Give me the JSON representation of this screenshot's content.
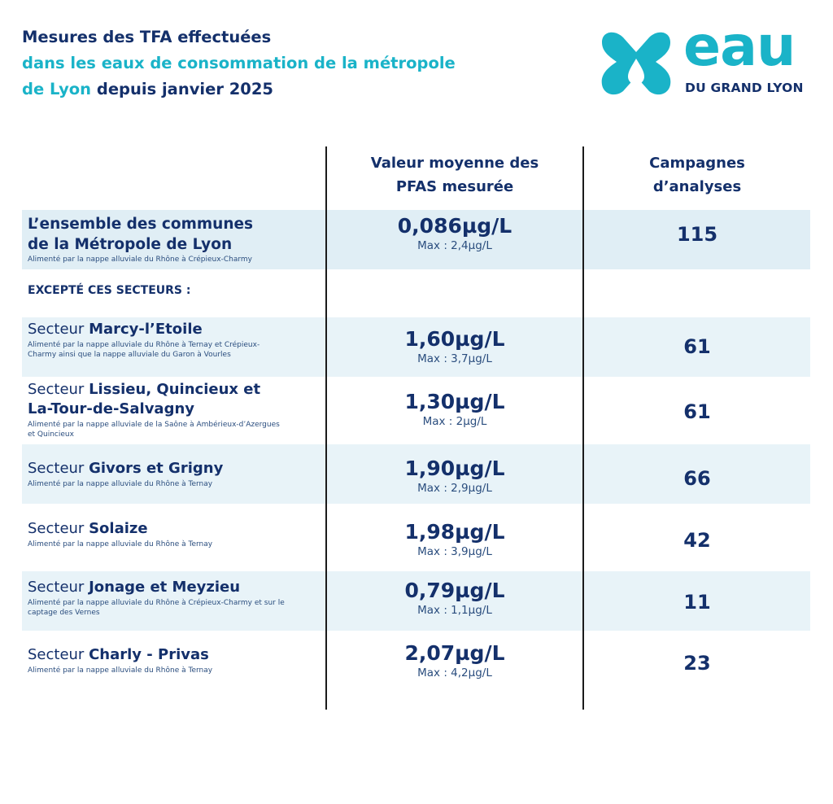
{
  "title": {
    "line1": "Mesures des TFA effectuées",
    "line2": "dans les eaux de consommation de la métropole",
    "line3_accent": "de Lyon",
    "line3_rest": " depuis janvier 2025"
  },
  "logo": {
    "text_main": "eau",
    "text_sub": "DU GRAND LYON",
    "colors": {
      "cyan": "#1ab3c8",
      "navy": "#14306b"
    }
  },
  "table": {
    "header_col2_line1": "Valeur moyenne des",
    "header_col2_line2": "PFAS mesurée",
    "header_col3_line1": "Campagnes",
    "header_col3_line2": "d’analyses",
    "summary": {
      "name_line1": "L’ensemble des communes",
      "name_line2": "de la Métropole de Lyon",
      "desc": "Alimenté par la nappe alluviale du Rhône à Crépieux-Charmy",
      "value": "0,086µg/L",
      "max": "Max : 2,4µg/L",
      "count": "115"
    },
    "except_label": "EXCEPTÉ CES SECTEURS :",
    "rows": [
      {
        "prefix": "Secteur ",
        "name": "Marcy-l’Etoile",
        "desc": "Alimenté par la nappe alluviale du Rhône à Ternay et Crépieux-Charmy ainsi que la nappe alluviale du Garon à Vourles",
        "value": "1,60µg/L",
        "max": "Max : 3,7µg/L",
        "count": "61"
      },
      {
        "prefix": "Secteur ",
        "name": "Lissieu, Quincieux et La-Tour-de-Salvagny",
        "desc": "Alimenté par la nappe alluviale de la Saône à Ambérieux-d’Azergues et Quincieux",
        "value": "1,30µg/L",
        "max": "Max : 2µg/L",
        "count": "61"
      },
      {
        "prefix": "Secteur ",
        "name": "Givors et Grigny",
        "desc": "Alimenté par la nappe alluviale du Rhône à Ternay",
        "value": "1,90µg/L",
        "max": "Max : 2,9µg/L",
        "count": "66"
      },
      {
        "prefix": "Secteur ",
        "name": "Solaize",
        "desc": "Alimenté par la nappe alluviale du Rhône à Ternay",
        "value": "1,98µg/L",
        "max": "Max : 3,9µg/L",
        "count": "42"
      },
      {
        "prefix": "Secteur ",
        "name": "Jonage et Meyzieu",
        "desc": "Alimenté par la nappe alluviale du Rhône à Crépieux-Charmy et sur le captage des Vernes",
        "value": "0,79µg/L",
        "max": "Max : 1,1µg/L",
        "count": "11"
      },
      {
        "prefix": "Secteur ",
        "name": "Charly - Privas",
        "desc": "Alimenté par la nappe alluviale du Rhône à Ternay",
        "value": "2,07µg/L",
        "max": "Max : 4,2µg/L",
        "count": "23"
      }
    ]
  }
}
